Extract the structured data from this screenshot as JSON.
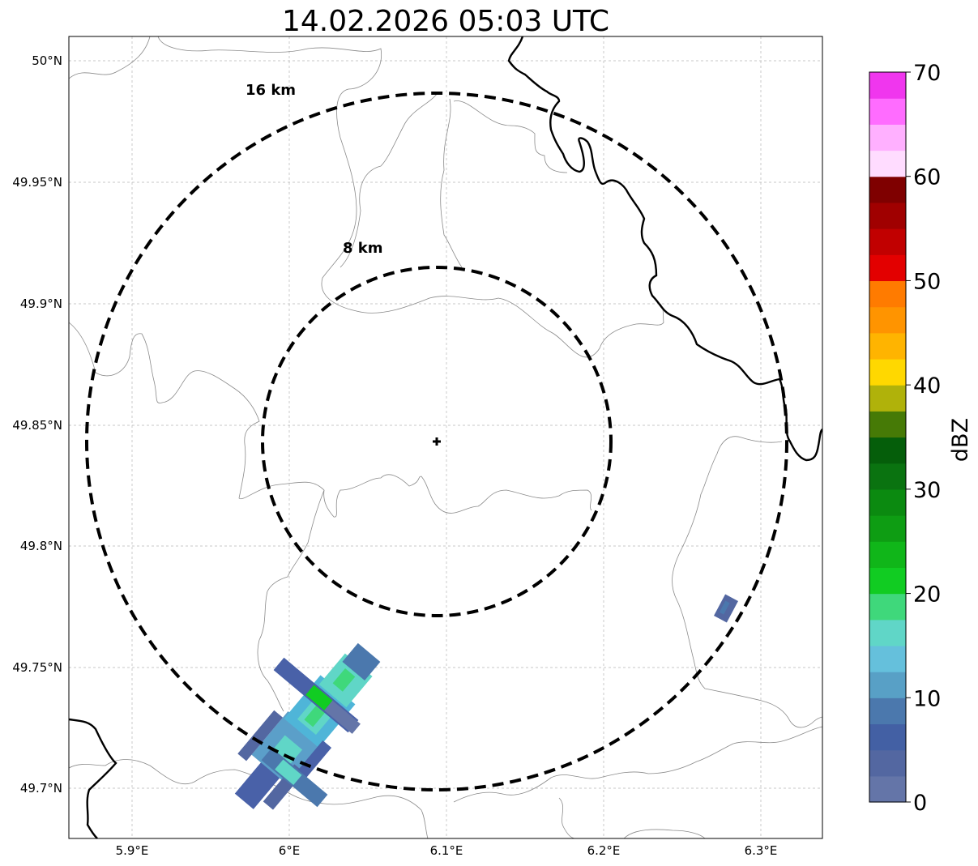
{
  "chart_data": {
    "type": "radar-reflectivity-map",
    "title": "14.02.2026 05:03 UTC",
    "x_ticks": [
      "5.9°E",
      "6°E",
      "6.1°E",
      "6.2°E",
      "6.3°E"
    ],
    "y_ticks": [
      "50°N",
      "49.95°N",
      "49.9°N",
      "49.85°N",
      "49.8°N",
      "49.75°N",
      "49.7°N"
    ],
    "lon_range": [
      5.86,
      6.34
    ],
    "lat_range": [
      49.68,
      50.01
    ],
    "radar_center": {
      "lon": 6.094,
      "lat": 49.843
    },
    "range_rings": [
      {
        "label": "8 km",
        "radius_km": 8
      },
      {
        "label": "16 km",
        "radius_km": 16
      }
    ],
    "colorbar": {
      "label": "dBZ",
      "min": 0,
      "max": 70,
      "tick_labels": [
        "0",
        "10",
        "20",
        "30",
        "40",
        "50",
        "60",
        "70"
      ],
      "colors": [
        "#6475a8",
        "#5367a1",
        "#4360a4",
        "#4b78ad",
        "#58a0c6",
        "#65c0dc",
        "#60d6c7",
        "#3fd87b",
        "#11cc22",
        "#10b619",
        "#0e9d13",
        "#0b8a10",
        "#0a7310",
        "#055e0a",
        "#467a06",
        "#b0b20a",
        "#ffd800",
        "#ffb400",
        "#ff9400",
        "#ff7b00",
        "#e30000",
        "#c10000",
        "#a00000",
        "#7f0000",
        "#ffdcff",
        "#ffb0ff",
        "#ff6cff",
        "#f036ee"
      ]
    },
    "echoes_dbz": [
      {
        "lon": 6.005,
        "lat": 49.733,
        "dbz": 3
      },
      {
        "lon": 6.02,
        "lat": 49.735,
        "dbz": 20
      },
      {
        "lon": 6.01,
        "lat": 49.722,
        "dbz": 17
      },
      {
        "lon": 5.995,
        "lat": 49.705,
        "dbz": 13
      },
      {
        "lon": 6.28,
        "lat": 49.774,
        "dbz": 4
      }
    ]
  }
}
